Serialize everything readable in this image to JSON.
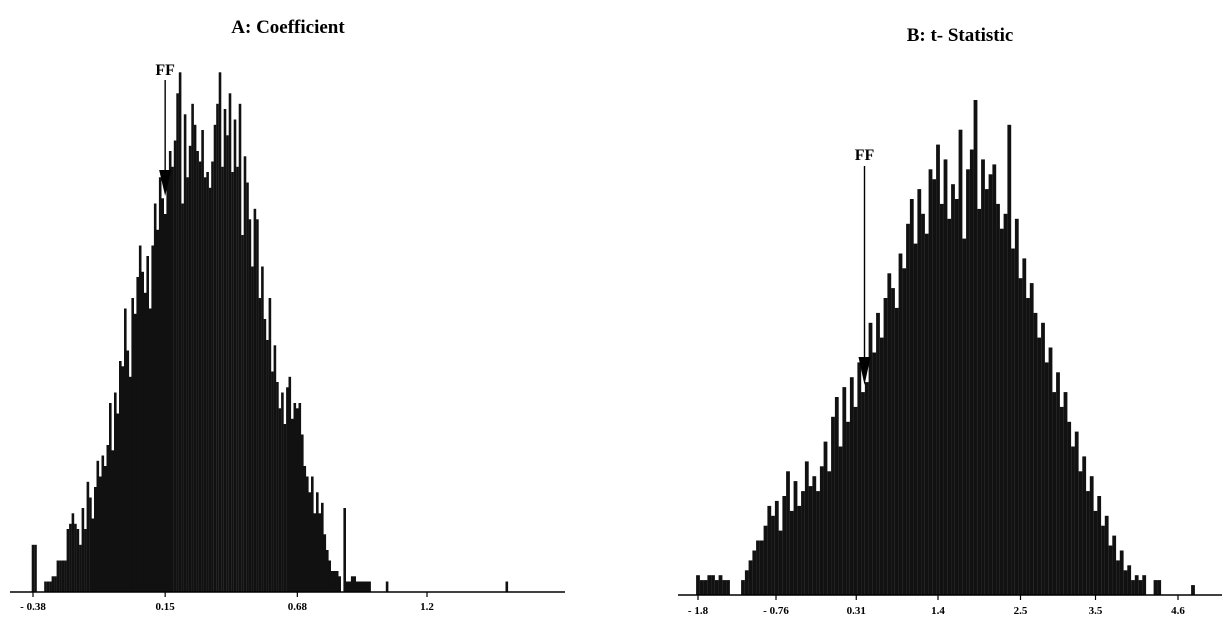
{
  "chart_data": [
    {
      "type": "bar",
      "title": "A: Coefficient",
      "x_ticks": [
        -0.38,
        0.15,
        0.68,
        1.2
      ],
      "x_tick_labels": [
        "- 0.38",
        "0.15",
        "0.68",
        "1.2"
      ],
      "xlim": [
        -0.4,
        1.78
      ],
      "ylim": [
        0,
        100
      ],
      "grid": false,
      "marker": {
        "label": "FF",
        "x": 0.15
      },
      "bars": [
        [
          -0.38,
          9
        ],
        [
          -0.37,
          9
        ],
        [
          -0.33,
          2
        ],
        [
          -0.32,
          2
        ],
        [
          -0.31,
          2
        ],
        [
          -0.3,
          3
        ],
        [
          -0.29,
          3
        ],
        [
          -0.28,
          6
        ],
        [
          -0.27,
          6
        ],
        [
          -0.26,
          6
        ],
        [
          -0.25,
          6
        ],
        [
          -0.24,
          12
        ],
        [
          -0.23,
          13
        ],
        [
          -0.22,
          15
        ],
        [
          -0.21,
          13
        ],
        [
          -0.2,
          12
        ],
        [
          -0.19,
          9
        ],
        [
          -0.18,
          16
        ],
        [
          -0.17,
          12
        ],
        [
          -0.16,
          21
        ],
        [
          -0.15,
          18
        ],
        [
          -0.14,
          14
        ],
        [
          -0.13,
          20
        ],
        [
          -0.12,
          25
        ],
        [
          -0.11,
          22
        ],
        [
          -0.1,
          26
        ],
        [
          -0.09,
          24
        ],
        [
          -0.08,
          28
        ],
        [
          -0.07,
          36
        ],
        [
          -0.06,
          27
        ],
        [
          -0.05,
          38
        ],
        [
          -0.04,
          34
        ],
        [
          -0.03,
          44
        ],
        [
          -0.02,
          43
        ],
        [
          -0.01,
          54
        ],
        [
          0.0,
          46
        ],
        [
          0.01,
          41
        ],
        [
          0.02,
          56
        ],
        [
          0.03,
          53
        ],
        [
          0.04,
          60
        ],
        [
          0.05,
          66
        ],
        [
          0.06,
          61
        ],
        [
          0.07,
          57
        ],
        [
          0.08,
          64
        ],
        [
          0.09,
          54
        ],
        [
          0.1,
          66
        ],
        [
          0.11,
          74
        ],
        [
          0.12,
          69
        ],
        [
          0.13,
          79
        ],
        [
          0.14,
          75
        ],
        [
          0.15,
          72
        ],
        [
          0.16,
          79
        ],
        [
          0.17,
          84
        ],
        [
          0.18,
          81
        ],
        [
          0.19,
          86
        ],
        [
          0.2,
          95
        ],
        [
          0.21,
          99
        ],
        [
          0.22,
          74
        ],
        [
          0.23,
          91
        ],
        [
          0.24,
          79
        ],
        [
          0.25,
          85
        ],
        [
          0.26,
          93
        ],
        [
          0.27,
          89
        ],
        [
          0.28,
          84
        ],
        [
          0.29,
          82
        ],
        [
          0.3,
          88
        ],
        [
          0.31,
          79
        ],
        [
          0.32,
          80
        ],
        [
          0.33,
          77
        ],
        [
          0.34,
          82
        ],
        [
          0.35,
          89
        ],
        [
          0.36,
          93
        ],
        [
          0.37,
          99
        ],
        [
          0.38,
          81
        ],
        [
          0.39,
          92
        ],
        [
          0.4,
          87
        ],
        [
          0.41,
          95
        ],
        [
          0.42,
          80
        ],
        [
          0.43,
          90
        ],
        [
          0.44,
          81
        ],
        [
          0.45,
          93
        ],
        [
          0.46,
          68
        ],
        [
          0.47,
          83
        ],
        [
          0.48,
          78
        ],
        [
          0.49,
          71
        ],
        [
          0.5,
          62
        ],
        [
          0.51,
          73
        ],
        [
          0.52,
          71
        ],
        [
          0.53,
          56
        ],
        [
          0.54,
          62
        ],
        [
          0.55,
          52
        ],
        [
          0.56,
          48
        ],
        [
          0.57,
          56
        ],
        [
          0.58,
          42
        ],
        [
          0.59,
          47
        ],
        [
          0.6,
          40
        ],
        [
          0.61,
          35
        ],
        [
          0.62,
          38
        ],
        [
          0.63,
          32
        ],
        [
          0.64,
          39
        ],
        [
          0.65,
          41
        ],
        [
          0.66,
          33
        ],
        [
          0.67,
          36
        ],
        [
          0.68,
          35
        ],
        [
          0.69,
          36
        ],
        [
          0.7,
          30
        ],
        [
          0.71,
          24
        ],
        [
          0.72,
          22
        ],
        [
          0.73,
          19
        ],
        [
          0.74,
          22
        ],
        [
          0.75,
          15
        ],
        [
          0.76,
          19
        ],
        [
          0.77,
          15
        ],
        [
          0.78,
          17
        ],
        [
          0.79,
          11
        ],
        [
          0.8,
          8
        ],
        [
          0.81,
          6
        ],
        [
          0.82,
          4
        ],
        [
          0.83,
          4
        ],
        [
          0.84,
          4
        ],
        [
          0.85,
          3
        ],
        [
          0.87,
          16
        ],
        [
          0.88,
          2
        ],
        [
          0.89,
          2
        ],
        [
          0.9,
          3
        ],
        [
          0.91,
          3
        ],
        [
          0.92,
          2
        ],
        [
          0.93,
          2
        ],
        [
          0.94,
          2
        ],
        [
          0.95,
          2
        ],
        [
          0.96,
          2
        ],
        [
          0.97,
          2
        ],
        [
          1.04,
          2
        ],
        [
          1.52,
          2
        ]
      ]
    },
    {
      "type": "bar",
      "title": "B: t- Statistic",
      "x_ticks": [
        -1.8,
        -0.76,
        0.31,
        1.4,
        2.5,
        3.5,
        4.6
      ],
      "x_tick_labels": [
        "- 1.8",
        "- 0.76",
        "0.31",
        "1.4",
        "2.5",
        "3.5",
        "4.6"
      ],
      "xlim": [
        -1.85,
        5.95
      ],
      "ylim": [
        0,
        100
      ],
      "grid": false,
      "marker": {
        "label": "FF",
        "x": 0.42
      },
      "bars": [
        [
          -1.8,
          4
        ],
        [
          -1.75,
          3
        ],
        [
          -1.7,
          3
        ],
        [
          -1.65,
          4
        ],
        [
          -1.6,
          4
        ],
        [
          -1.55,
          3
        ],
        [
          -1.5,
          4
        ],
        [
          -1.45,
          3
        ],
        [
          -1.4,
          3
        ],
        [
          -1.2,
          3
        ],
        [
          -1.15,
          5
        ],
        [
          -1.1,
          7
        ],
        [
          -1.05,
          9
        ],
        [
          -1.0,
          11
        ],
        [
          -0.95,
          11
        ],
        [
          -0.9,
          14
        ],
        [
          -0.85,
          18
        ],
        [
          -0.8,
          16
        ],
        [
          -0.75,
          19
        ],
        [
          -0.7,
          13
        ],
        [
          -0.65,
          20
        ],
        [
          -0.6,
          25
        ],
        [
          -0.55,
          17
        ],
        [
          -0.5,
          23
        ],
        [
          -0.45,
          18
        ],
        [
          -0.4,
          21
        ],
        [
          -0.35,
          27
        ],
        [
          -0.3,
          22
        ],
        [
          -0.25,
          24
        ],
        [
          -0.2,
          21
        ],
        [
          -0.15,
          26
        ],
        [
          -0.1,
          31
        ],
        [
          -0.05,
          25
        ],
        [
          0.0,
          36
        ],
        [
          0.05,
          40
        ],
        [
          0.1,
          30
        ],
        [
          0.15,
          42
        ],
        [
          0.2,
          35
        ],
        [
          0.25,
          44
        ],
        [
          0.3,
          38
        ],
        [
          0.35,
          47
        ],
        [
          0.4,
          41
        ],
        [
          0.45,
          43
        ],
        [
          0.5,
          55
        ],
        [
          0.55,
          49
        ],
        [
          0.6,
          57
        ],
        [
          0.65,
          52
        ],
        [
          0.7,
          60
        ],
        [
          0.75,
          65
        ],
        [
          0.8,
          62
        ],
        [
          0.85,
          58
        ],
        [
          0.9,
          69
        ],
        [
          0.95,
          66
        ],
        [
          1.0,
          75
        ],
        [
          1.05,
          80
        ],
        [
          1.1,
          71
        ],
        [
          1.15,
          82
        ],
        [
          1.2,
          77
        ],
        [
          1.25,
          73
        ],
        [
          1.3,
          86
        ],
        [
          1.35,
          84
        ],
        [
          1.4,
          91
        ],
        [
          1.45,
          79
        ],
        [
          1.5,
          88
        ],
        [
          1.55,
          76
        ],
        [
          1.6,
          83
        ],
        [
          1.65,
          80
        ],
        [
          1.7,
          94
        ],
        [
          1.75,
          72
        ],
        [
          1.8,
          86
        ],
        [
          1.85,
          90
        ],
        [
          1.9,
          100
        ],
        [
          1.95,
          78
        ],
        [
          2.0,
          88
        ],
        [
          2.05,
          82
        ],
        [
          2.1,
          85
        ],
        [
          2.15,
          87
        ],
        [
          2.2,
          79
        ],
        [
          2.25,
          74
        ],
        [
          2.3,
          77
        ],
        [
          2.35,
          95
        ],
        [
          2.4,
          70
        ],
        [
          2.45,
          76
        ],
        [
          2.5,
          64
        ],
        [
          2.55,
          68
        ],
        [
          2.6,
          60
        ],
        [
          2.65,
          63
        ],
        [
          2.7,
          57
        ],
        [
          2.75,
          52
        ],
        [
          2.8,
          55
        ],
        [
          2.85,
          47
        ],
        [
          2.9,
          50
        ],
        [
          2.95,
          41
        ],
        [
          3.0,
          45
        ],
        [
          3.05,
          38
        ],
        [
          3.1,
          41
        ],
        [
          3.15,
          35
        ],
        [
          3.2,
          30
        ],
        [
          3.25,
          33
        ],
        [
          3.3,
          25
        ],
        [
          3.35,
          28
        ],
        [
          3.4,
          21
        ],
        [
          3.45,
          24
        ],
        [
          3.5,
          17
        ],
        [
          3.55,
          20
        ],
        [
          3.6,
          14
        ],
        [
          3.65,
          16
        ],
        [
          3.7,
          10
        ],
        [
          3.75,
          12
        ],
        [
          3.8,
          7
        ],
        [
          3.85,
          9
        ],
        [
          3.9,
          5
        ],
        [
          3.95,
          6
        ],
        [
          4.0,
          3
        ],
        [
          4.05,
          4
        ],
        [
          4.1,
          3
        ],
        [
          4.15,
          4
        ],
        [
          4.3,
          3
        ],
        [
          4.35,
          3
        ],
        [
          4.8,
          2
        ]
      ]
    }
  ]
}
